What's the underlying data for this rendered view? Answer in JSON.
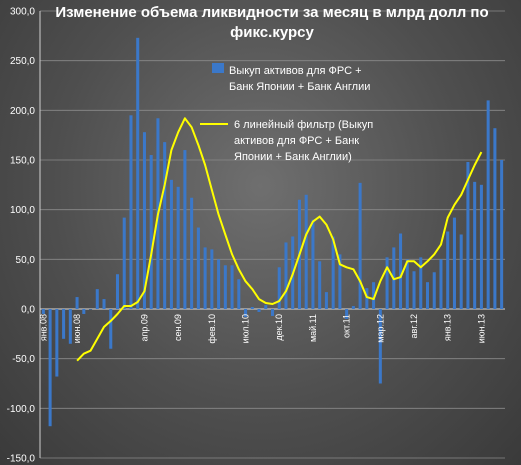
{
  "chart_data": {
    "type": "bar",
    "title_lines": [
      "Изменение объема ликвидности за месяц в млрд долл по",
      "фикс.курсу"
    ],
    "xlabel": "",
    "ylabel": "",
    "ylim": [
      -150,
      300
    ],
    "y_ticks": [
      "-150,0",
      "-100,0",
      "-50,0",
      "0,0",
      "50,0",
      "100,0",
      "150,0",
      "200,0",
      "250,0",
      "300,0"
    ],
    "x_tick_labels": [
      {
        "index": 0,
        "label": "янв.08"
      },
      {
        "index": 5,
        "label": "июн.08"
      },
      {
        "index": 15,
        "label": "апр.09"
      },
      {
        "index": 20,
        "label": "сен.09"
      },
      {
        "index": 25,
        "label": "фев.10"
      },
      {
        "index": 30,
        "label": "июл.10"
      },
      {
        "index": 35,
        "label": "дек.10"
      },
      {
        "index": 40,
        "label": "май.11"
      },
      {
        "index": 45,
        "label": "окт.11"
      },
      {
        "index": 50,
        "label": "мар.12"
      },
      {
        "index": 55,
        "label": "авг.12"
      },
      {
        "index": 60,
        "label": "янв.13"
      },
      {
        "index": 65,
        "label": "июн.13"
      }
    ],
    "grid": true,
    "legend_position": "top-right",
    "series": [
      {
        "name": "Выкуп активов для ФРС + Банк Японии + Банк Англии",
        "kind": "bar",
        "color": "#3b78c9",
        "values": [
          -5,
          -118,
          -68,
          -30,
          -35,
          12,
          -5,
          0,
          20,
          10,
          -40,
          35,
          92,
          195,
          273,
          178,
          155,
          192,
          168,
          130,
          123,
          160,
          112,
          82,
          62,
          60,
          50,
          44,
          44,
          30,
          -8,
          2,
          -3,
          4,
          -7,
          42,
          67,
          73,
          110,
          115,
          90,
          48,
          17,
          73,
          55,
          -10,
          3,
          127,
          21,
          27,
          -75,
          52,
          62,
          76,
          50,
          38,
          52,
          27,
          37,
          50,
          78,
          92,
          75,
          148,
          128,
          125,
          210,
          182,
          150
        ]
      },
      {
        "name": "6 линейный фильтр (Выкуп активов для ФРС + Банк Японии + Банк Англии)",
        "kind": "line",
        "color": "#ffff00",
        "start_index": 5,
        "values": [
          -52,
          -45,
          -42,
          -30,
          -18,
          -12,
          -5,
          3,
          3,
          7,
          18,
          55,
          95,
          125,
          160,
          178,
          192,
          183,
          165,
          145,
          120,
          95,
          75,
          55,
          40,
          28,
          20,
          10,
          6,
          5,
          8,
          18,
          35,
          55,
          75,
          88,
          93,
          85,
          70,
          45,
          42,
          40,
          28,
          12,
          10,
          28,
          42,
          30,
          32,
          48,
          48,
          42,
          48,
          55,
          65,
          92,
          105,
          115,
          130,
          145,
          158
        ]
      }
    ]
  },
  "legend": {
    "bar_lines": [
      "Выкуп активов для ФРС +",
      "Банк Японии + Банк Англии"
    ],
    "line_lines": [
      "6 линейный фильтр (Выкуп",
      "активов для ФРС + Банк",
      "Японии + Банк Англии)"
    ]
  }
}
